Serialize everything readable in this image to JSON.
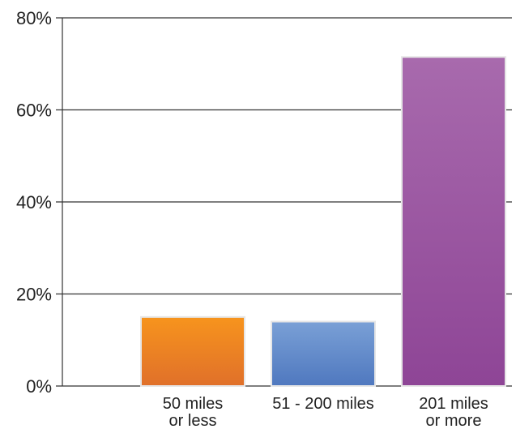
{
  "chart_data": {
    "type": "bar",
    "categories": [
      [
        "50 miles",
        "or less"
      ],
      [
        "51 - 200 miles"
      ],
      [
        "201 miles",
        "or more"
      ]
    ],
    "values": [
      15,
      14,
      71.5
    ],
    "ylim": [
      0,
      80
    ],
    "yticks": [
      0,
      20,
      40,
      60,
      80
    ],
    "ytick_labels": [
      "0%",
      "20%",
      "40%",
      "60%",
      "80%"
    ],
    "title": "",
    "xlabel": "",
    "ylabel": "",
    "grid": true,
    "colors": [
      {
        "top": "#f7941d",
        "bottom": "#e0702a"
      },
      {
        "top": "#7aa0d6",
        "bottom": "#4f78bf"
      },
      {
        "top": "#a86aad",
        "bottom": "#8e4596"
      }
    ]
  }
}
